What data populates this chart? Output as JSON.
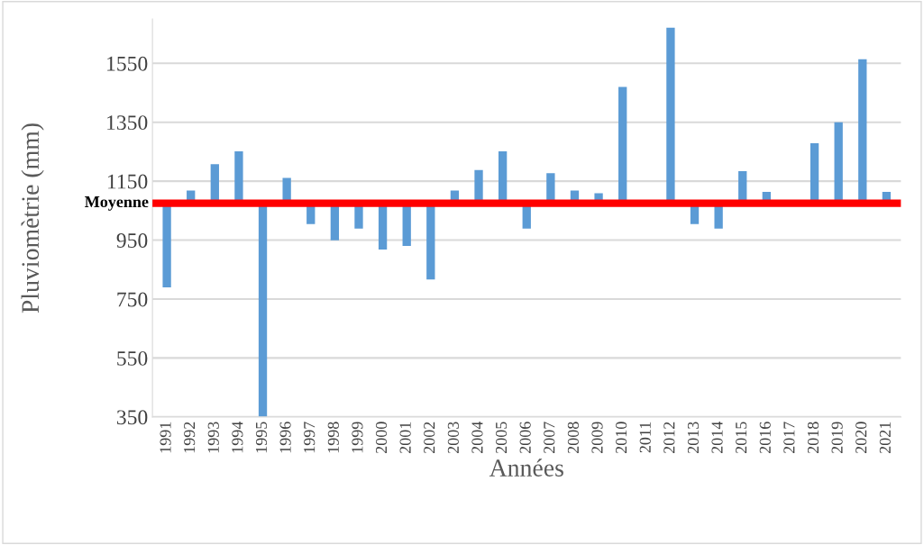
{
  "chart_data": {
    "type": "bar",
    "xlabel": "Années",
    "ylabel": "Pluviomètrie (mm)",
    "categories": [
      "1991",
      "1992",
      "1993",
      "1994",
      "1995",
      "1996",
      "1997",
      "1998",
      "1999",
      "2000",
      "2001",
      "2002",
      "2003",
      "2004",
      "2005",
      "2006",
      "2007",
      "2008",
      "2009",
      "2010",
      "2011",
      "2012",
      "2013",
      "2014",
      "2015",
      "2016",
      "2017",
      "2018",
      "2019",
      "2020",
      "2021"
    ],
    "base": [
      1075,
      1075,
      1075,
      1075,
      1075,
      1075,
      1075,
      1075,
      1075,
      1075,
      1075,
      1075,
      1075,
      1075,
      1075,
      1075,
      1075,
      1075,
      1075,
      1075,
      null,
      1075,
      1075,
      1075,
      1075,
      1075,
      null,
      1075,
      1075,
      1075,
      1075
    ],
    "values": [
      -285,
      43,
      133,
      176,
      -725,
      86,
      -71,
      -126,
      -86,
      -157,
      -145,
      -259,
      43,
      113,
      176,
      -86,
      102,
      43,
      34,
      395,
      null,
      596,
      -71,
      -86,
      109,
      39,
      null,
      204,
      275,
      489,
      39
    ],
    "color": "#5b9bd5",
    "ylim": [
      350,
      1700
    ],
    "yticks": [
      350,
      550,
      750,
      950,
      1150,
      1350,
      1550
    ],
    "grid": "y",
    "ref_lines": [
      {
        "axis": "y",
        "value": 1075,
        "label": "Moyenne",
        "color": "#ff0000"
      }
    ]
  }
}
